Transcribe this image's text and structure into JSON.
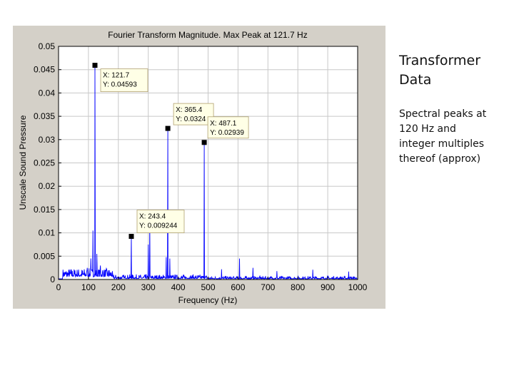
{
  "side_text": {
    "title_lines": [
      "Transformer",
      "Data"
    ],
    "note_lines": [
      "Spectral peaks at",
      "120 Hz and",
      "integer multiples",
      "thereof (approx)"
    ]
  },
  "chart_data": {
    "type": "line",
    "title": "Fourier Transform Magnitude. Max Peak at  121.7 Hz",
    "xlabel": "Frequency (Hz)",
    "ylabel": "Unscale Sound Pressure",
    "xlim": [
      0,
      1000
    ],
    "ylim": [
      0,
      0.05
    ],
    "grid": true,
    "x_ticks": [
      0,
      100,
      200,
      300,
      400,
      500,
      600,
      700,
      800,
      900,
      1000
    ],
    "y_ticks": [
      "0",
      "0.005",
      "0.01",
      "0.015",
      "0.02",
      "0.025",
      "0.03",
      "0.035",
      "0.04",
      "0.045",
      "0.05"
    ],
    "line_color": "#0000ff",
    "peaks": [
      {
        "x": 96,
        "y": 0.0025
      },
      {
        "x": 108,
        "y": 0.0045
      },
      {
        "x": 115,
        "y": 0.0105
      },
      {
        "x": 121.7,
        "y": 0.04593
      },
      {
        "x": 128,
        "y": 0.0055
      },
      {
        "x": 140,
        "y": 0.003
      },
      {
        "x": 148,
        "y": 0.002
      },
      {
        "x": 180,
        "y": 0.0018
      },
      {
        "x": 243.4,
        "y": 0.009244
      },
      {
        "x": 300,
        "y": 0.0075
      },
      {
        "x": 305,
        "y": 0.012
      },
      {
        "x": 360,
        "y": 0.0048
      },
      {
        "x": 365.4,
        "y": 0.0324
      },
      {
        "x": 372,
        "y": 0.0045
      },
      {
        "x": 487.1,
        "y": 0.02939
      },
      {
        "x": 545,
        "y": 0.0022
      },
      {
        "x": 605,
        "y": 0.0045
      },
      {
        "x": 650,
        "y": 0.0025
      },
      {
        "x": 730,
        "y": 0.0018
      },
      {
        "x": 850,
        "y": 0.0021
      },
      {
        "x": 970,
        "y": 0.0017
      }
    ],
    "data_tips": [
      {
        "x": 121.7,
        "y": 0.04593,
        "x_label": "X: 121.7",
        "y_label": "Y: 0.04593"
      },
      {
        "x": 243.4,
        "y": 0.009244,
        "x_label": "X: 243.4",
        "y_label": "Y: 0.009244"
      },
      {
        "x": 365.4,
        "y": 0.0324,
        "x_label": "X: 365.4",
        "y_label": "Y: 0.0324"
      },
      {
        "x": 487.1,
        "y": 0.02939,
        "x_label": "X: 487.1",
        "y_label": "Y: 0.02939"
      }
    ]
  }
}
